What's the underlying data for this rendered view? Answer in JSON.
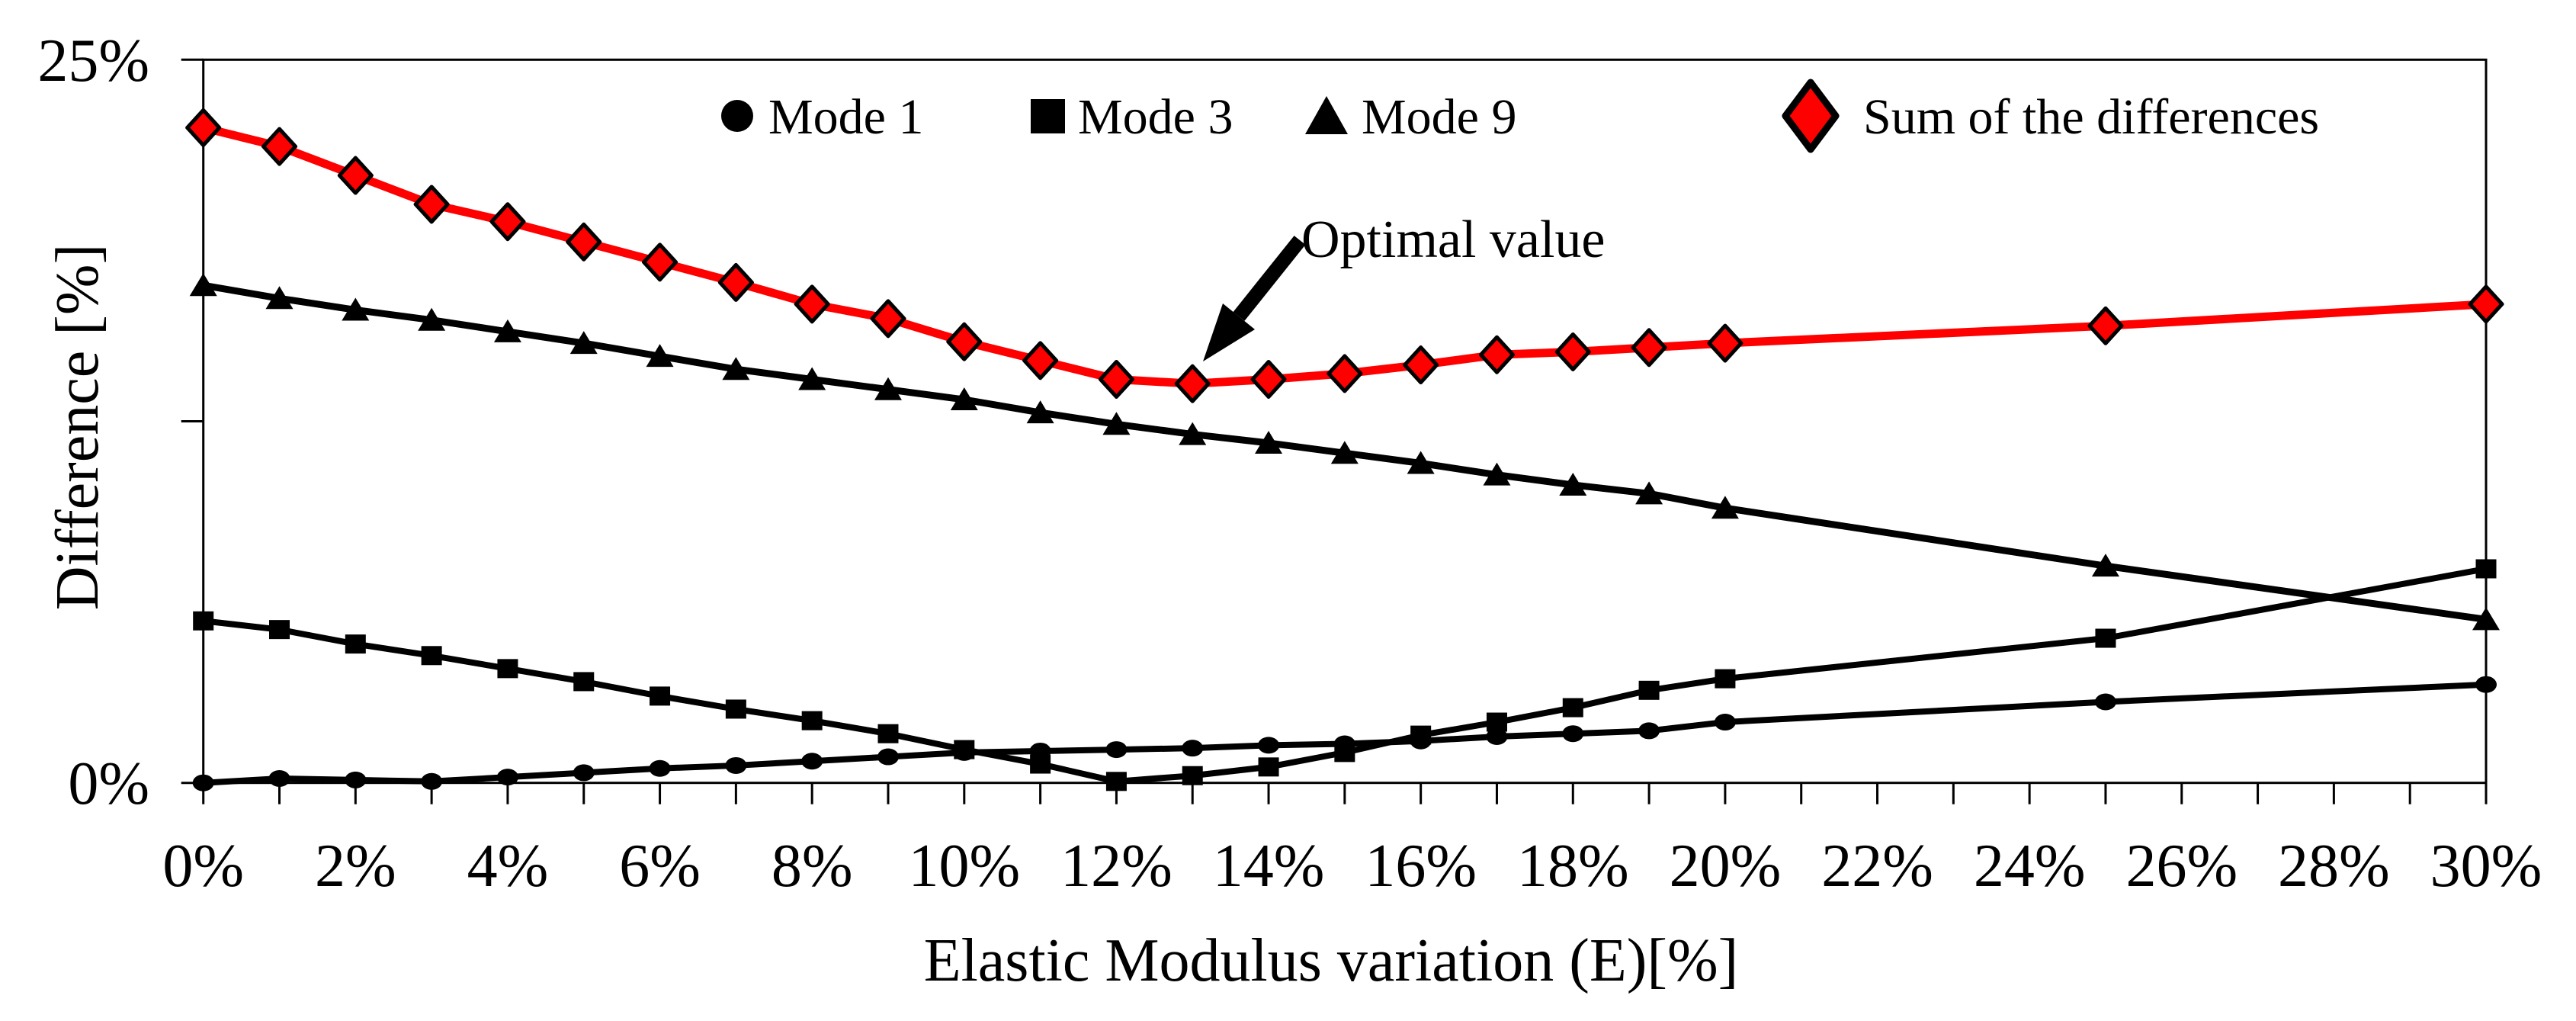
{
  "chart_data": {
    "type": "line",
    "title": "",
    "xlabel": "Elastic Modulus variation (E)[%]",
    "ylabel": "Difference [%]",
    "xlim": [
      0,
      30
    ],
    "ylim": [
      0,
      25
    ],
    "grid": "off",
    "legend_position": "top-inside-horizontal",
    "x_minor_tick_step": 1,
    "x_tick_labels": [
      {
        "value": 0,
        "label": "0%"
      },
      {
        "value": 2,
        "label": "2%"
      },
      {
        "value": 4,
        "label": "4%"
      },
      {
        "value": 6,
        "label": "6%"
      },
      {
        "value": 8,
        "label": "8%"
      },
      {
        "value": 10,
        "label": "10%"
      },
      {
        "value": 12,
        "label": "12%"
      },
      {
        "value": 14,
        "label": "14%"
      },
      {
        "value": 16,
        "label": "16%"
      },
      {
        "value": 18,
        "label": "18%"
      },
      {
        "value": 20,
        "label": "20%"
      },
      {
        "value": 22,
        "label": "22%"
      },
      {
        "value": 24,
        "label": "24%"
      },
      {
        "value": 26,
        "label": "26%"
      },
      {
        "value": 28,
        "label": "28%"
      },
      {
        "value": 30,
        "label": "30%"
      }
    ],
    "y_ticks": [
      {
        "value": 25,
        "label": "25%"
      },
      {
        "value": 12.5,
        "label": ""
      },
      {
        "value": 0,
        "label": "0%"
      }
    ],
    "x": [
      0,
      1,
      2,
      3,
      4,
      5,
      6,
      7,
      8,
      9,
      10,
      11,
      12,
      13,
      14,
      15,
      16,
      17,
      18,
      19,
      20,
      25,
      30
    ],
    "series": [
      {
        "name": "Mode 1",
        "marker": "circle",
        "color": "#000000",
        "marker_fill": "#000000",
        "values": [
          0.0,
          0.15,
          0.1,
          0.05,
          0.2,
          0.35,
          0.5,
          0.6,
          0.75,
          0.9,
          1.05,
          1.1,
          1.15,
          1.2,
          1.3,
          1.35,
          1.45,
          1.6,
          1.7,
          1.8,
          2.1,
          2.8,
          3.4
        ]
      },
      {
        "name": "Mode 3",
        "marker": "square",
        "color": "#000000",
        "marker_fill": "#000000",
        "values": [
          5.6,
          5.3,
          4.8,
          4.4,
          3.95,
          3.5,
          3.0,
          2.55,
          2.15,
          1.7,
          1.15,
          0.65,
          0.05,
          0.25,
          0.55,
          1.05,
          1.65,
          2.1,
          2.6,
          3.2,
          3.6,
          5.0,
          7.4
        ]
      },
      {
        "name": "Mode 9",
        "marker": "triangle",
        "color": "#000000",
        "marker_fill": "#000000",
        "values": [
          17.2,
          16.75,
          16.35,
          16.0,
          15.6,
          15.2,
          14.75,
          14.3,
          13.95,
          13.6,
          13.25,
          12.8,
          12.4,
          12.05,
          11.75,
          11.4,
          11.05,
          10.65,
          10.3,
          10.0,
          9.5,
          7.5,
          5.65
        ]
      },
      {
        "name": "Sum of the differences",
        "marker": "diamond",
        "color": "#ff0000",
        "marker_fill": "#ff0000",
        "marker_stroke": "#000000",
        "values": [
          22.65,
          22.0,
          21.0,
          20.0,
          19.4,
          18.7,
          18.0,
          17.3,
          16.55,
          16.05,
          15.25,
          14.6,
          13.95,
          13.8,
          13.95,
          14.15,
          14.45,
          14.8,
          14.9,
          15.05,
          15.2,
          15.8,
          16.55
        ]
      }
    ],
    "annotation": {
      "text": "Optimal value",
      "points_to": {
        "x": 13,
        "y": 13.8
      }
    }
  }
}
